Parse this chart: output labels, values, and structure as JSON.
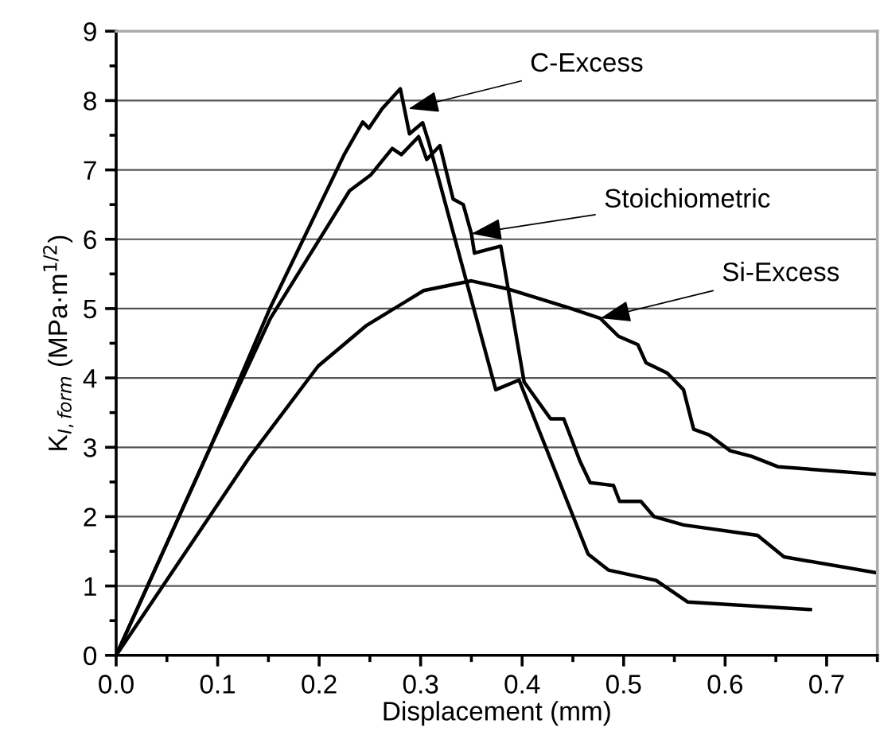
{
  "chart_data": {
    "type": "line",
    "xlabel": "Displacement (mm)",
    "ylabel": "K$_{I,form}$ (MPa·m$^{1/2}$)",
    "xlim": [
      0,
      0.75
    ],
    "xticks": [
      {
        "value": 0,
        "label": "0.0"
      },
      0.1,
      0.2,
      0.3,
      0.4,
      0.5,
      0.6,
      0.7
    ],
    "ylim": [
      0,
      9
    ],
    "yticks": [
      0,
      1,
      2,
      3,
      4,
      5,
      6,
      7,
      8,
      9
    ],
    "grid": "y",
    "legend": false,
    "marker": "none",
    "line_style": "solid",
    "series": [
      {
        "color": "#000000",
        "x": [
          0,
          0.0925,
          0.152,
          0.225,
          0.243,
          0.249,
          0.262,
          0.28,
          0.289,
          0.302,
          0.308,
          0.374,
          0.397,
          0.465,
          0.485,
          0.532,
          0.563,
          0.684
        ],
        "values": [
          0,
          2.99,
          5.02,
          7.23,
          7.69,
          7.6,
          7.88,
          8.17,
          7.52,
          7.68,
          7.4,
          3.83,
          3.97,
          1.46,
          1.23,
          1.08,
          0.77,
          0.66
        ]
      },
      {
        "color": "#000000",
        "x": [
          0,
          0.0925,
          0.152,
          0.23,
          0.251,
          0.272,
          0.281,
          0.298,
          0.306,
          0.319,
          0.332,
          0.342,
          0.35,
          0.353,
          0.379,
          0.402,
          0.428,
          0.441,
          0.457,
          0.467,
          0.49,
          0.496,
          0.517,
          0.53,
          0.559,
          0.632,
          0.658,
          0.749
        ],
        "values": [
          0,
          2.99,
          4.86,
          6.7,
          6.93,
          7.31,
          7.22,
          7.48,
          7.15,
          7.35,
          6.58,
          6.5,
          6.08,
          5.8,
          5.9,
          3.94,
          3.41,
          3.41,
          2.8,
          2.49,
          2.45,
          2.22,
          2.22,
          2.0,
          1.88,
          1.73,
          1.42,
          1.19
        ]
      },
      {
        "color": "#000000",
        "x": [
          0,
          0.132,
          0.199,
          0.246,
          0.303,
          0.35,
          0.387,
          0.444,
          0.477,
          0.495,
          0.514,
          0.522,
          0.543,
          0.559,
          0.569,
          0.584,
          0.605,
          0.626,
          0.652,
          0.749
        ],
        "values": [
          0,
          2.87,
          4.17,
          4.75,
          5.26,
          5.4,
          5.28,
          5.02,
          4.86,
          4.6,
          4.48,
          4.22,
          4.07,
          3.83,
          3.26,
          3.18,
          2.95,
          2.87,
          2.72,
          2.61
        ]
      }
    ],
    "annotations": [
      {
        "text": "C-Excess",
        "x": 0.288,
        "y": 7.88
      },
      {
        "text": "Stoichiometric",
        "x": 0.35,
        "y": 6.08
      },
      {
        "text": "Si-Excess",
        "x": 0.477,
        "y": 4.86
      }
    ]
  }
}
